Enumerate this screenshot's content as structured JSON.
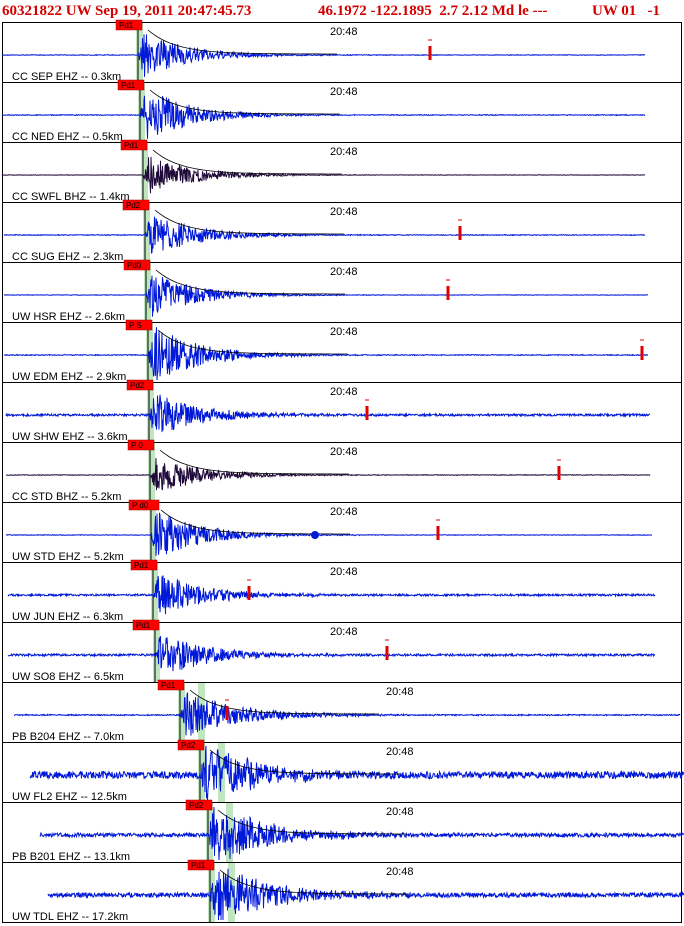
{
  "header": {
    "event": "60321822 UW Sep 19, 2011 20:47:45.73",
    "coords": "46.1972 -122.1895  2.7 2.12 Md le ---",
    "network": "UW 01   -1"
  },
  "chart_data": {
    "type": "seismogram",
    "time_label": "20:48",
    "colors": {
      "header": "#d40000",
      "trace": "#0018d8",
      "trace_broadband": "#200a3a",
      "pick": "#e00000",
      "shade": "#bfe6bf",
      "coda": "#000000"
    },
    "traces": [
      {
        "label": "CC SEP EHZ -- 0.3km",
        "pick": "Pd1",
        "color": "blue"
      },
      {
        "label": "CC NED EHZ -- 0.5km",
        "pick": "Pd1",
        "color": "blue"
      },
      {
        "label": "CC SWFL BHZ -- 1.4km",
        "pick": "Pd1",
        "color": "dark"
      },
      {
        "label": "CC SUG EHZ -- 2.3km",
        "pick": "Pd2",
        "color": "blue"
      },
      {
        "label": "UW HSR EHZ -- 2.6km",
        "pick": "Pd0",
        "color": "blue"
      },
      {
        "label": "UW EDM EHZ -- 2.9km",
        "pick": "P S",
        "color": "blue"
      },
      {
        "label": "UW SHW EHZ -- 3.6km",
        "pick": "Pd2",
        "color": "blue"
      },
      {
        "label": "CC STD BHZ -- 5.2km",
        "pick": "P 0",
        "color": "dark"
      },
      {
        "label": "UW STD EHZ -- 5.2km",
        "pick": "P d0",
        "color": "blue"
      },
      {
        "label": "UW JUN EHZ -- 6.3km",
        "pick": "Pd1",
        "color": "blue"
      },
      {
        "label": "UW SO8 EHZ -- 6.5km",
        "pick": "Pd1",
        "color": "blue"
      },
      {
        "label": "PB B204 EHZ -- 7.0km",
        "pick": "Pd1",
        "color": "blue"
      },
      {
        "label": "UW FL2 EHZ -- 12.5km",
        "pick": "Pd2",
        "color": "blue"
      },
      {
        "label": "PB B201 EHZ -- 13.1km",
        "pick": "Pd2",
        "color": "blue"
      },
      {
        "label": "UW TDL EHZ -- 17.2km",
        "pick": "Pd1",
        "color": "blue"
      }
    ]
  }
}
